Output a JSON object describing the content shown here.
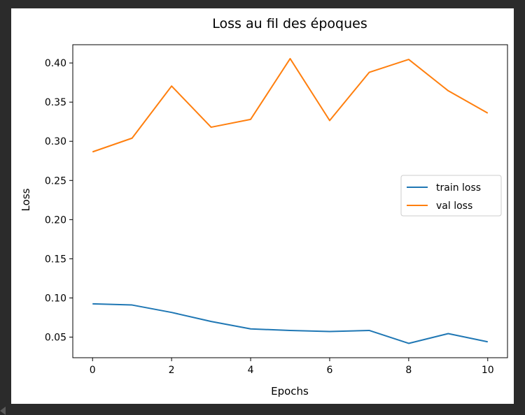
{
  "chart_data": {
    "type": "line",
    "title": "Loss au fil des époques",
    "xlabel": "Epochs",
    "ylabel": "Loss",
    "xlim": [
      -0.5,
      10.5
    ],
    "ylim": [
      0.0237,
      0.4233
    ],
    "xticks": [
      0,
      2,
      4,
      6,
      8,
      10
    ],
    "yticks": [
      0.05,
      0.1,
      0.15,
      0.2,
      0.25,
      0.3,
      0.35,
      0.4
    ],
    "ytick_labels": [
      "0.05",
      "0.10",
      "0.15",
      "0.20",
      "0.25",
      "0.30",
      "0.35",
      "0.40"
    ],
    "xtick_labels": [
      "0",
      "2",
      "4",
      "6",
      "8",
      "10"
    ],
    "grid": false,
    "legend_position": "center-right",
    "x": [
      0,
      1,
      2,
      3,
      4,
      5,
      6,
      7,
      8,
      9,
      10
    ],
    "series": [
      {
        "name": "train loss",
        "color": "#1f77b4",
        "values": [
          0.0925,
          0.091,
          0.0815,
          0.07,
          0.0605,
          0.0585,
          0.0572,
          0.0585,
          0.042,
          0.0545,
          0.044
        ]
      },
      {
        "name": "val loss",
        "color": "#ff7f0e",
        "values": [
          0.2865,
          0.304,
          0.3705,
          0.318,
          0.328,
          0.4055,
          0.3265,
          0.388,
          0.4045,
          0.3645,
          0.336
        ]
      }
    ]
  }
}
